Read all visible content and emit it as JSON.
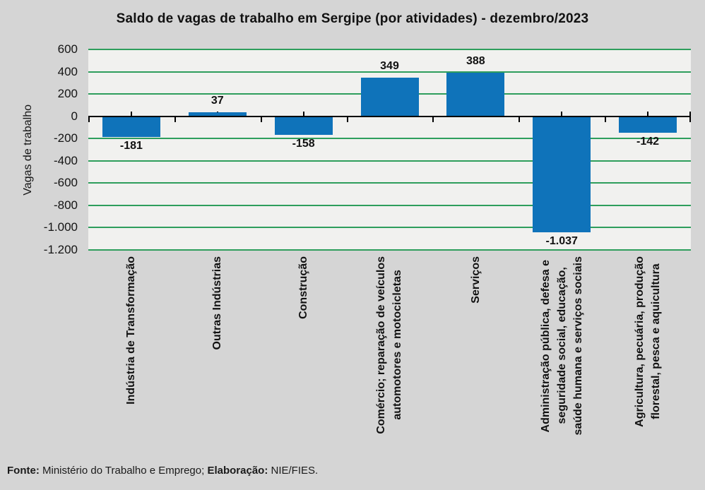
{
  "chart_data": {
    "type": "bar",
    "title": "Saldo de vagas de trabalho em Sergipe (por atividades) - dezembro/2023",
    "ylabel": "Vagas de trabalho",
    "ylim": [
      -1200,
      600
    ],
    "grid": true,
    "legend": "none",
    "yticks": [
      {
        "value": 600,
        "label": "600"
      },
      {
        "value": 400,
        "label": "400"
      },
      {
        "value": 200,
        "label": "200"
      },
      {
        "value": 0,
        "label": "0"
      },
      {
        "value": -200,
        "label": "-200"
      },
      {
        "value": -400,
        "label": "-400"
      },
      {
        "value": -600,
        "label": "-600"
      },
      {
        "value": -800,
        "label": "-800"
      },
      {
        "value": -1000,
        "label": "-1.000"
      },
      {
        "value": -1200,
        "label": "-1.200"
      }
    ],
    "categories": [
      [
        "Indústria de Transformação"
      ],
      [
        "Outras Indústrias"
      ],
      [
        "Construção"
      ],
      [
        "Comércio; reparação de veículos",
        "automotores e motocicletas"
      ],
      [
        "Serviços"
      ],
      [
        "Administração pública, defesa e",
        "seguridade social, educação,",
        "saúde humana e serviços sociais"
      ],
      [
        "Agricultura, pecuária, produção",
        "florestal, pesca e aquicultura"
      ]
    ],
    "values": [
      -181,
      37,
      -158,
      349,
      388,
      -1037,
      -142
    ],
    "value_labels": [
      "-181",
      "37",
      "-158",
      "349",
      "388",
      "-1.037",
      "-142"
    ],
    "colors": {
      "bar": "#0f73ba",
      "grid": "#2e9e5c",
      "axis": "#000000",
      "plot_bg": "#f1f1ef",
      "canvas_bg": "#d5d5d5",
      "text": "#111111"
    }
  },
  "footer": {
    "segments": [
      {
        "text": "Fonte:",
        "bold": true
      },
      {
        "text": " Ministério do Trabalho e Emprego; ",
        "bold": false
      },
      {
        "text": "Elaboração:",
        "bold": true
      },
      {
        "text": " NIE/FIES.",
        "bold": false
      }
    ]
  }
}
